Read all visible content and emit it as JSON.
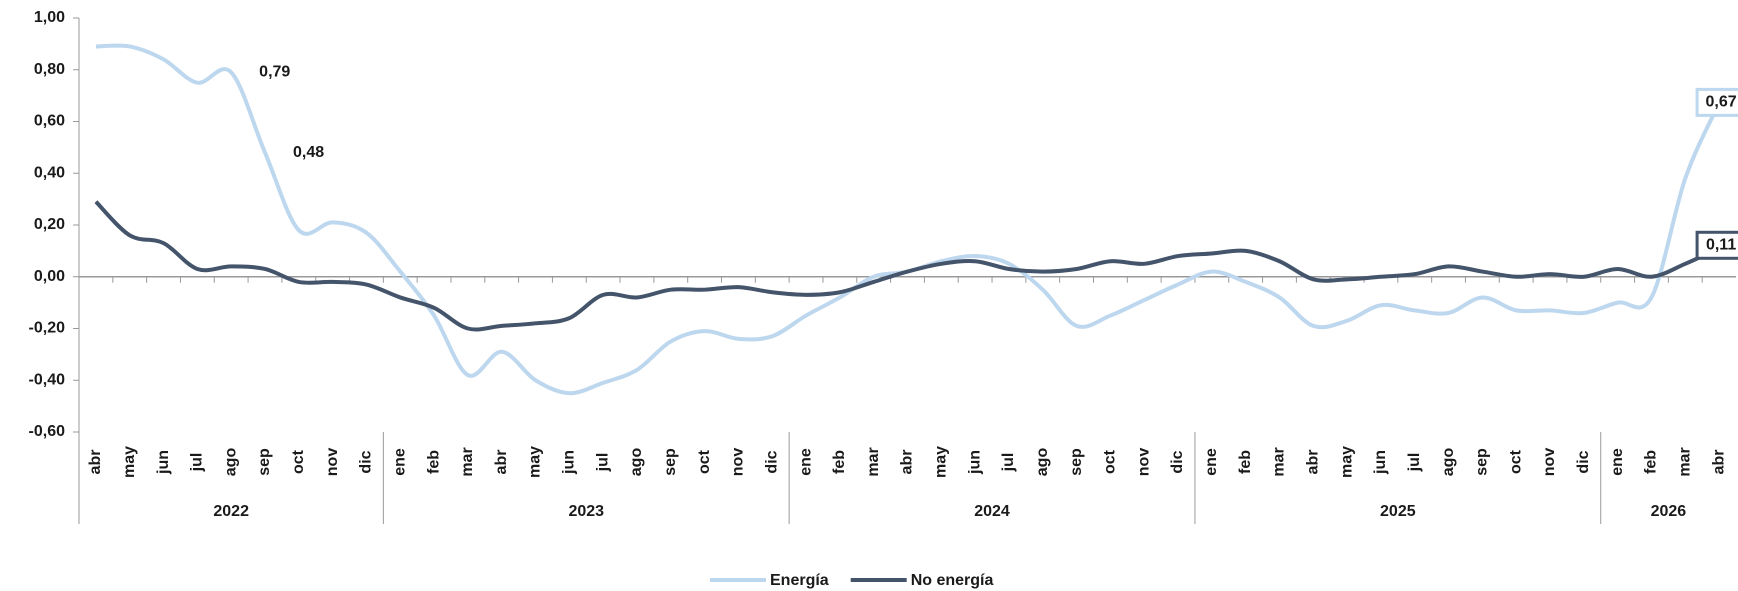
{
  "chart_data": {
    "type": "line",
    "categories": [
      "abr",
      "may",
      "jun",
      "jul",
      "ago",
      "sep",
      "oct",
      "nov",
      "dic",
      "ene",
      "feb",
      "mar",
      "abr",
      "may",
      "jun",
      "jul",
      "ago",
      "sep",
      "oct",
      "nov",
      "dic",
      "ene",
      "feb",
      "mar",
      "abr",
      "may",
      "jun",
      "jul",
      "ago",
      "sep",
      "oct",
      "nov",
      "dic",
      "ene",
      "feb",
      "mar",
      "abr",
      "may",
      "jun",
      "jul",
      "ago",
      "sep",
      "oct",
      "nov",
      "dic",
      "ene",
      "feb",
      "mar",
      "abr"
    ],
    "year_groups": [
      {
        "label": "2022",
        "span": 9
      },
      {
        "label": "2023",
        "span": 12
      },
      {
        "label": "2024",
        "span": 12
      },
      {
        "label": "2025",
        "span": 12
      },
      {
        "label": "2026",
        "span": 4
      }
    ],
    "series": [
      {
        "name": "Energía",
        "color": "#bdd7ee",
        "values": [
          0.89,
          0.89,
          0.84,
          0.75,
          0.79,
          0.48,
          0.18,
          0.21,
          0.17,
          0.02,
          -0.15,
          -0.38,
          -0.29,
          -0.4,
          -0.45,
          -0.41,
          -0.36,
          -0.25,
          -0.21,
          -0.24,
          -0.23,
          -0.15,
          -0.08,
          0.0,
          0.02,
          0.06,
          0.08,
          0.05,
          -0.05,
          -0.19,
          -0.15,
          -0.09,
          -0.03,
          0.02,
          -0.02,
          -0.08,
          -0.19,
          -0.17,
          -0.11,
          -0.13,
          -0.14,
          -0.08,
          -0.13,
          -0.13,
          -0.14,
          -0.1,
          -0.08,
          0.38,
          0.67
        ],
        "value_labels": [
          null,
          null,
          null,
          null,
          "0,79",
          "0,48",
          null,
          null,
          null,
          null,
          null,
          null,
          null,
          null,
          null,
          null,
          null,
          null,
          null,
          null,
          null,
          null,
          null,
          null,
          null,
          null,
          null,
          null,
          null,
          null,
          null,
          null,
          null,
          null,
          null,
          null,
          null,
          null,
          null,
          null,
          null,
          null,
          null,
          null,
          null,
          null,
          null,
          null,
          "0,67"
        ]
      },
      {
        "name": "No energía",
        "color": "#44546a",
        "values": [
          0.29,
          0.16,
          0.13,
          0.03,
          0.04,
          0.03,
          -0.02,
          -0.02,
          -0.03,
          -0.08,
          -0.12,
          -0.2,
          -0.19,
          -0.18,
          -0.16,
          -0.07,
          -0.08,
          -0.05,
          -0.05,
          -0.04,
          -0.06,
          -0.07,
          -0.06,
          -0.02,
          0.02,
          0.05,
          0.06,
          0.03,
          0.02,
          0.03,
          0.06,
          0.05,
          0.08,
          0.09,
          0.1,
          0.06,
          -0.01,
          -0.01,
          0.0,
          0.01,
          0.04,
          0.02,
          0.0,
          0.01,
          0.0,
          0.03,
          0.0,
          0.05,
          0.11
        ],
        "value_labels": [
          null,
          null,
          null,
          null,
          null,
          null,
          null,
          null,
          null,
          null,
          null,
          null,
          null,
          null,
          null,
          null,
          null,
          null,
          null,
          null,
          null,
          null,
          null,
          null,
          null,
          null,
          null,
          null,
          null,
          null,
          null,
          null,
          null,
          null,
          null,
          null,
          null,
          null,
          null,
          null,
          null,
          null,
          null,
          null,
          null,
          null,
          null,
          null,
          "0,11"
        ]
      }
    ],
    "ylim": [
      -0.6,
      1.0
    ],
    "yticks": [
      {
        "value": -0.6,
        "label": "-0,60"
      },
      {
        "value": -0.4,
        "label": "-0,40"
      },
      {
        "value": -0.2,
        "label": "-0,20"
      },
      {
        "value": 0,
        "label": "0,00"
      },
      {
        "value": 0.2,
        "label": "0,20"
      },
      {
        "value": 0.4,
        "label": "0,40"
      },
      {
        "value": 0.6,
        "label": "0,60"
      },
      {
        "value": 0.8,
        "label": "0,80"
      },
      {
        "value": 1.0,
        "label": "1,00"
      }
    ],
    "legend": "bottom"
  }
}
